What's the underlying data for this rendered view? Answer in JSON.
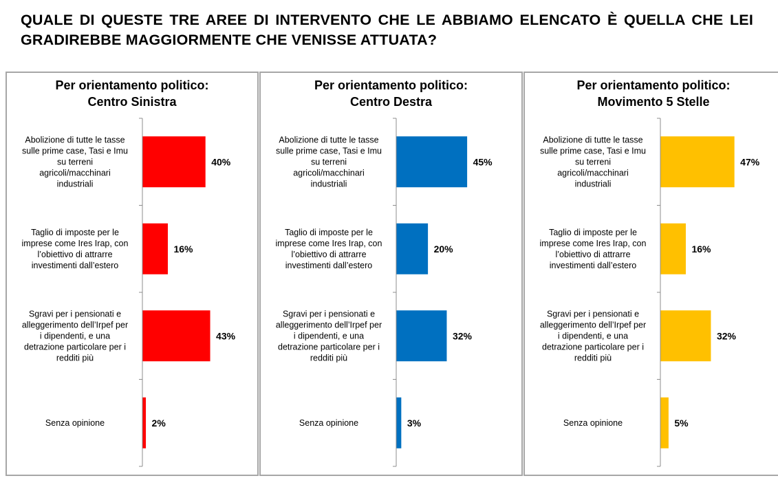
{
  "title": "QUALE DI QUESTE TRE AREE DI INTERVENTO CHE LE ABBIAMO ELENCATO È QUELLA CHE LEI GRADIREBBE MAGGIORMENTE CHE VENISSE ATTUATA?",
  "categories": [
    [
      "Abolizione di tutte le tasse",
      "sulle prime case, Tasi e Imu",
      "su terreni",
      "agricoli/macchinari",
      "industriali"
    ],
    [
      "Taglio di imposte per le",
      "imprese come Ires Irap, con",
      "l’obiettivo di attrarre",
      "investimenti dall’estero"
    ],
    [
      "Sgravi per i pensionati e",
      "alleggerimento dell’Irpef per",
      "i dipendenti, e una",
      "detrazione particolare per i",
      "redditi più"
    ],
    [
      "Senza opinione"
    ]
  ],
  "chart_data": [
    {
      "type": "bar",
      "orientation": "horizontal",
      "title_lines": [
        "Per orientamento politico:",
        "Centro Sinistra"
      ],
      "categories": [
        "Abolizione di tutte le tasse sulle prime case, Tasi e Imu su terreni agricoli/macchinari industriali",
        "Taglio di imposte per le imprese come Ires Irap, con l’obiettivo di attrarre investimenti dall’estero",
        "Sgravi per i pensionati e alleggerimento dell’Irpef per i dipendenti, e una detrazione particolare per i redditi più",
        "Senza opinione"
      ],
      "values": [
        40,
        16,
        43,
        2
      ],
      "labels": [
        "40%",
        "16%",
        "43%",
        "2%"
      ],
      "color": "#ff0000",
      "grid": false
    },
    {
      "type": "bar",
      "orientation": "horizontal",
      "title_lines": [
        "Per orientamento politico:",
        "Centro Destra"
      ],
      "categories": [
        "Abolizione di tutte le tasse sulle prime case, Tasi e Imu su terreni agricoli/macchinari industriali",
        "Taglio di imposte per le imprese come Ires Irap, con l’obiettivo di attrarre investimenti dall’estero",
        "Sgravi per i pensionati e alleggerimento dell’Irpef per i dipendenti, e una detrazione particolare per i redditi più",
        "Senza opinione"
      ],
      "values": [
        45,
        20,
        32,
        3
      ],
      "labels": [
        "45%",
        "20%",
        "32%",
        "3%"
      ],
      "color": "#0070c0",
      "grid": false
    },
    {
      "type": "bar",
      "orientation": "horizontal",
      "title_lines": [
        "Per orientamento politico:",
        "Movimento 5 Stelle"
      ],
      "categories": [
        "Abolizione di tutte le tasse sulle prime case, Tasi e Imu su terreni agricoli/macchinari industriali",
        "Taglio di imposte per le imprese come Ires Irap, con l’obiettivo di attrarre investimenti dall’estero",
        "Sgravi per i pensionati e alleggerimento dell’Irpef per i dipendenti, e una detrazione particolare per i redditi più",
        "Senza opinione"
      ],
      "values": [
        47,
        16,
        32,
        5
      ],
      "labels": [
        "47%",
        "16%",
        "32%",
        "5%"
      ],
      "color": "#ffc000",
      "grid": false
    }
  ]
}
